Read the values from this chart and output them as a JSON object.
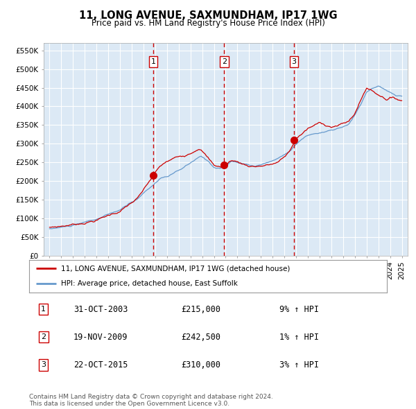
{
  "title": "11, LONG AVENUE, SAXMUNDHAM, IP17 1WG",
  "subtitle": "Price paid vs. HM Land Registry's House Price Index (HPI)",
  "legend_line1": "11, LONG AVENUE, SAXMUNDHAM, IP17 1WG (detached house)",
  "legend_line2": "HPI: Average price, detached house, East Suffolk",
  "footer1": "Contains HM Land Registry data © Crown copyright and database right 2024.",
  "footer2": "This data is licensed under the Open Government Licence v3.0.",
  "transactions": [
    {
      "num": 1,
      "price": 215000,
      "x_year": 2003.83
    },
    {
      "num": 2,
      "price": 242500,
      "x_year": 2009.88
    },
    {
      "num": 3,
      "price": 310000,
      "x_year": 2015.81
    }
  ],
  "table_rows": [
    [
      "1",
      "31-OCT-2003",
      "£215,000",
      "9% ↑ HPI"
    ],
    [
      "2",
      "19-NOV-2009",
      "£242,500",
      "1% ↑ HPI"
    ],
    [
      "3",
      "22-OCT-2015",
      "£310,000",
      "3% ↑ HPI"
    ]
  ],
  "ylim": [
    0,
    570000
  ],
  "yticks": [
    0,
    50000,
    100000,
    150000,
    200000,
    250000,
    300000,
    350000,
    400000,
    450000,
    500000,
    550000
  ],
  "xlim_start": 1994.5,
  "xlim_end": 2025.5,
  "plot_bg_color": "#dce9f5",
  "fig_bg_color": "#ffffff",
  "red_line_color": "#cc0000",
  "blue_line_color": "#6699cc",
  "marker_color": "#cc0000",
  "dashed_color": "#cc0000",
  "grid_color": "#ffffff",
  "label_color": "#cc0000"
}
